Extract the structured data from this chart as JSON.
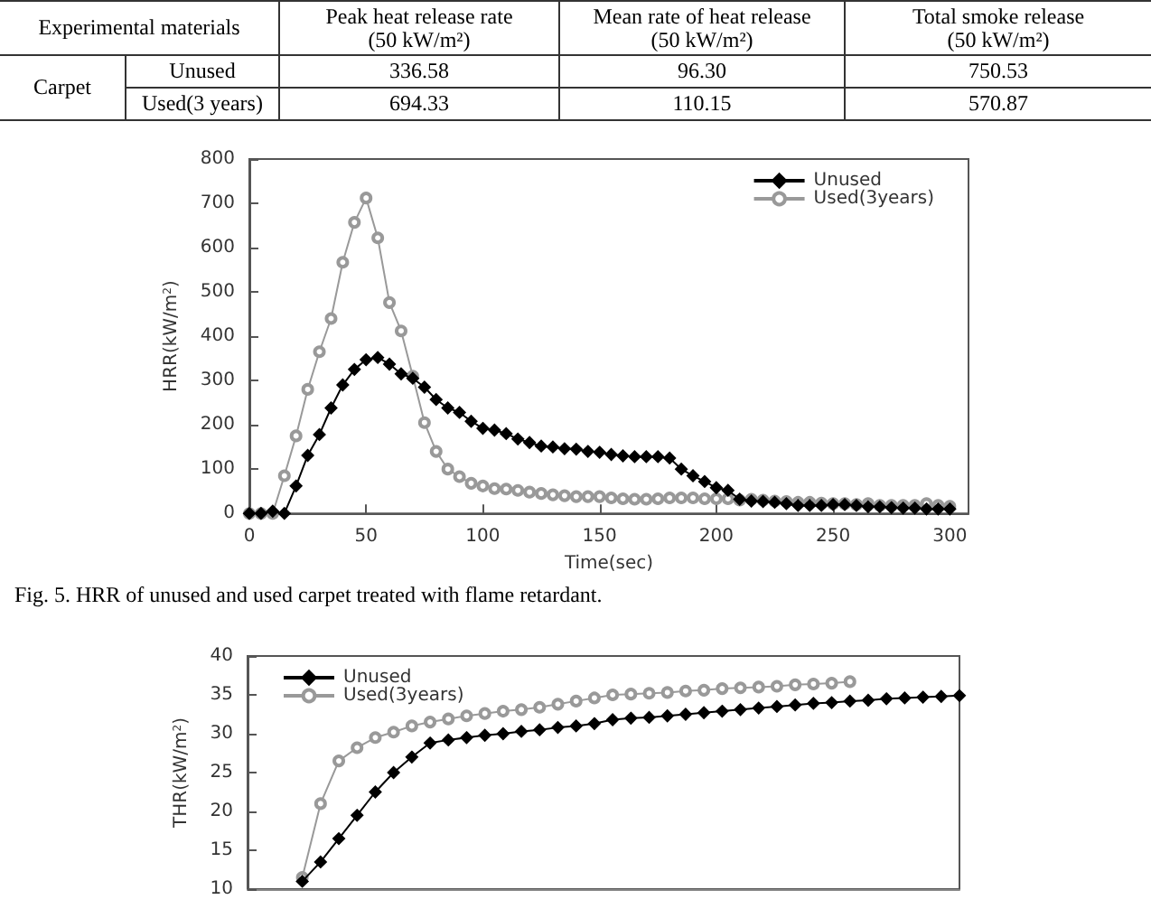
{
  "chart_data": [
    {
      "type": "other",
      "annotations": [
        "Experimental materials",
        "Peak heat release rate\n(50 kW/m²)",
        "Mean rate of heat release\n(50 kW/m²)",
        "Total smoke release\n(50 kW/m²)",
        "Carpet",
        "Unused",
        "336.58",
        "96.30",
        "750.53",
        "Used(3 years)",
        "694.33",
        "110.15",
        "570.87"
      ]
    },
    {
      "type": "line",
      "xlabel": "Time(sec)",
      "ylabel": "HRR(kW/m$^{2}$)",
      "annotations": [
        "Fig. 5. HRR of unused and used carpet treated with flame retardant."
      ],
      "x": [
        0,
        5,
        10,
        15,
        20,
        25,
        30,
        35,
        40,
        45,
        50,
        55,
        60,
        65,
        70,
        75,
        80,
        85,
        90,
        95,
        100,
        105,
        110,
        115,
        120,
        125,
        130,
        135,
        140,
        145,
        150,
        155,
        160,
        165,
        170,
        175,
        180,
        185,
        190,
        195,
        200,
        205,
        210,
        215,
        220,
        225,
        230,
        235,
        240,
        245,
        250,
        255,
        260,
        265,
        270,
        275,
        280,
        285,
        290,
        295,
        300
      ],
      "xlim": [
        0,
        308
      ],
      "xticks": [
        0,
        50,
        100,
        150,
        200,
        250,
        300
      ],
      "ylim": [
        0,
        800
      ],
      "yticks": [
        0,
        100,
        200,
        300,
        400,
        500,
        600,
        700,
        800
      ],
      "grid": false,
      "legend": "top right",
      "line_style": "solid",
      "series": [
        {
          "name": "Unused",
          "color": "#000000",
          "marker": "diamond",
          "values": [
            0,
            0,
            5,
            0,
            62,
            131,
            178,
            238,
            290,
            325,
            347,
            352,
            337,
            315,
            305,
            285,
            257,
            238,
            228,
            208,
            192,
            188,
            180,
            168,
            160,
            152,
            150,
            146,
            145,
            140,
            138,
            133,
            130,
            128,
            128,
            128,
            125,
            100,
            85,
            72,
            58,
            52,
            32,
            28,
            27,
            25,
            22,
            18,
            18,
            18,
            20,
            20,
            18,
            15,
            15,
            13,
            12,
            12,
            10,
            10,
            10
          ]
        },
        {
          "name": "Used(3years)",
          "color": "#999999",
          "marker": "circle",
          "values": [
            0,
            0,
            0,
            85,
            175,
            280,
            365,
            440,
            567,
            657,
            712,
            622,
            476,
            412,
            310,
            205,
            140,
            100,
            83,
            68,
            62,
            56,
            55,
            52,
            48,
            45,
            42,
            40,
            38,
            38,
            38,
            35,
            33,
            32,
            32,
            33,
            35,
            35,
            35,
            33,
            33,
            33,
            30,
            32,
            30,
            28,
            27,
            25,
            25,
            23,
            22,
            22,
            20,
            22,
            18,
            18,
            18,
            18,
            22,
            18,
            16
          ]
        }
      ]
    },
    {
      "type": "line",
      "ylabel": "THR(kW/m$^{2}$)",
      "categories": [
        null,
        null,
        null,
        null,
        null,
        null,
        null,
        null,
        null,
        null,
        null,
        null,
        null,
        null,
        null,
        null,
        null,
        null,
        null,
        null,
        null,
        null,
        null,
        null,
        null,
        null,
        null,
        null,
        null,
        null,
        null,
        null,
        null,
        null,
        null,
        null,
        null,
        null,
        null,
        null
      ],
      "ylim": [
        10,
        40
      ],
      "yticks": [
        10,
        15,
        20,
        25,
        30,
        35,
        40
      ],
      "tick_labels": "y",
      "grid": false,
      "legend": "top left",
      "line_style": "solid",
      "series": [
        {
          "name": "Unused",
          "color": "#000000",
          "marker": "diamond",
          "values": [
            null,
            null,
            null,
            11,
            13.5,
            16.5,
            19.5,
            22.5,
            25,
            27,
            28.8,
            29.2,
            29.5,
            29.8,
            30,
            30.3,
            30.5,
            30.8,
            31,
            31.3,
            31.8,
            32,
            32.1,
            32.3,
            32.5,
            32.7,
            32.9,
            33.1,
            33.3,
            33.5,
            33.7,
            33.9,
            34,
            34.2,
            34.3,
            34.5,
            34.6,
            34.7,
            34.8,
            34.9
          ]
        },
        {
          "name": "Used(3years)",
          "color": "#999999",
          "marker": "circle",
          "values": [
            null,
            null,
            null,
            11.5,
            21,
            26.5,
            28.2,
            29.5,
            30.2,
            31,
            31.5,
            31.9,
            32.3,
            32.6,
            32.9,
            33.1,
            33.4,
            33.8,
            34.2,
            34.6,
            35,
            35.1,
            35.2,
            35.3,
            35.5,
            35.6,
            35.8,
            35.9,
            36,
            36.1,
            36.3,
            36.4,
            36.5,
            36.7,
            null,
            null,
            null,
            null,
            null,
            null
          ]
        }
      ]
    }
  ]
}
